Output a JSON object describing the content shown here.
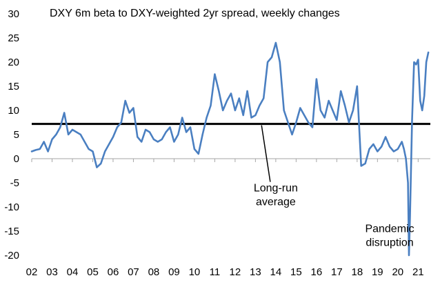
{
  "chart_data": {
    "type": "line",
    "title": "DXY 6m beta to DXY-weighted 2yr spread, weekly changes",
    "xlabel": "",
    "ylabel": "",
    "xlim": [
      2002,
      2021.6
    ],
    "ylim": [
      -20,
      30
    ],
    "yticks": [
      30,
      25,
      20,
      15,
      10,
      5,
      0,
      -5,
      -10,
      -15,
      -20
    ],
    "xticks": [
      "02",
      "03",
      "04",
      "05",
      "06",
      "07",
      "08",
      "09",
      "10",
      "11",
      "12",
      "13",
      "14",
      "15",
      "16",
      "17",
      "18",
      "19",
      "20",
      "21"
    ],
    "grid": false,
    "colors": {
      "series": "#4a7fc1",
      "average": "#000000",
      "zero": "#a6a6a6"
    },
    "reference_lines": [
      {
        "name": "Long-run average",
        "y": 7.2
      }
    ],
    "annotations": [
      {
        "lines": [
          "Long-run",
          "average"
        ],
        "x": 2014.0,
        "y": -6.8,
        "arrow_to": [
          2013.3,
          7.2
        ]
      },
      {
        "lines": [
          "Pandemic",
          "disruption"
        ],
        "x": 2019.6,
        "y": -15.2
      }
    ],
    "series": [
      {
        "name": "",
        "x": [
          2002.0,
          2002.2,
          2002.4,
          2002.6,
          2002.8,
          2003.0,
          2003.2,
          2003.4,
          2003.6,
          2003.8,
          2004.0,
          2004.2,
          2004.4,
          2004.6,
          2004.8,
          2005.0,
          2005.2,
          2005.4,
          2005.6,
          2005.8,
          2006.0,
          2006.2,
          2006.4,
          2006.6,
          2006.8,
          2007.0,
          2007.2,
          2007.4,
          2007.6,
          2007.8,
          2008.0,
          2008.2,
          2008.4,
          2008.6,
          2008.8,
          2009.0,
          2009.2,
          2009.4,
          2009.6,
          2009.8,
          2010.0,
          2010.2,
          2010.4,
          2010.6,
          2010.8,
          2011.0,
          2011.2,
          2011.4,
          2011.6,
          2011.8,
          2012.0,
          2012.2,
          2012.4,
          2012.6,
          2012.8,
          2013.0,
          2013.2,
          2013.4,
          2013.6,
          2013.8,
          2014.0,
          2014.2,
          2014.4,
          2014.6,
          2014.8,
          2015.0,
          2015.2,
          2015.4,
          2015.6,
          2015.8,
          2016.0,
          2016.2,
          2016.4,
          2016.6,
          2016.8,
          2017.0,
          2017.2,
          2017.4,
          2017.6,
          2017.8,
          2018.0,
          2018.2,
          2018.4,
          2018.6,
          2018.8,
          2019.0,
          2019.2,
          2019.4,
          2019.6,
          2019.8,
          2020.0,
          2020.2,
          2020.3,
          2020.4,
          2020.5,
          2020.55,
          2020.6,
          2020.7,
          2020.8,
          2020.9,
          2021.0,
          2021.1,
          2021.2,
          2021.3,
          2021.4,
          2021.5
        ],
        "y": [
          1.5,
          1.8,
          2.0,
          3.5,
          1.5,
          4.0,
          5.0,
          6.5,
          9.5,
          5.0,
          6.0,
          5.5,
          5.0,
          3.5,
          2.0,
          1.5,
          -1.8,
          -1.0,
          1.5,
          3.0,
          4.5,
          6.5,
          7.5,
          12.0,
          9.5,
          10.5,
          4.5,
          3.5,
          6.0,
          5.5,
          4.0,
          3.5,
          4.0,
          5.5,
          6.5,
          3.5,
          5.0,
          8.5,
          5.5,
          6.5,
          2.0,
          1.0,
          5.0,
          8.5,
          11.0,
          17.5,
          14.0,
          10.0,
          12.0,
          13.5,
          10.0,
          12.5,
          9.0,
          14.0,
          8.5,
          9.0,
          11.0,
          12.5,
          20.0,
          21.0,
          24.0,
          20.0,
          10.0,
          7.5,
          5.0,
          7.5,
          10.5,
          9.0,
          7.5,
          6.5,
          16.5,
          10.0,
          8.5,
          12.0,
          10.0,
          8.0,
          14.0,
          11.0,
          7.5,
          10.0,
          15.0,
          -1.5,
          -1.0,
          2.0,
          3.0,
          1.5,
          2.5,
          4.5,
          2.5,
          1.5,
          2.0,
          3.5,
          2.0,
          0.0,
          -5.0,
          -20.0,
          -12.0,
          8.0,
          20.0,
          19.5,
          20.5,
          12.0,
          10.0,
          13.0,
          20.0,
          22.0
        ]
      }
    ]
  }
}
